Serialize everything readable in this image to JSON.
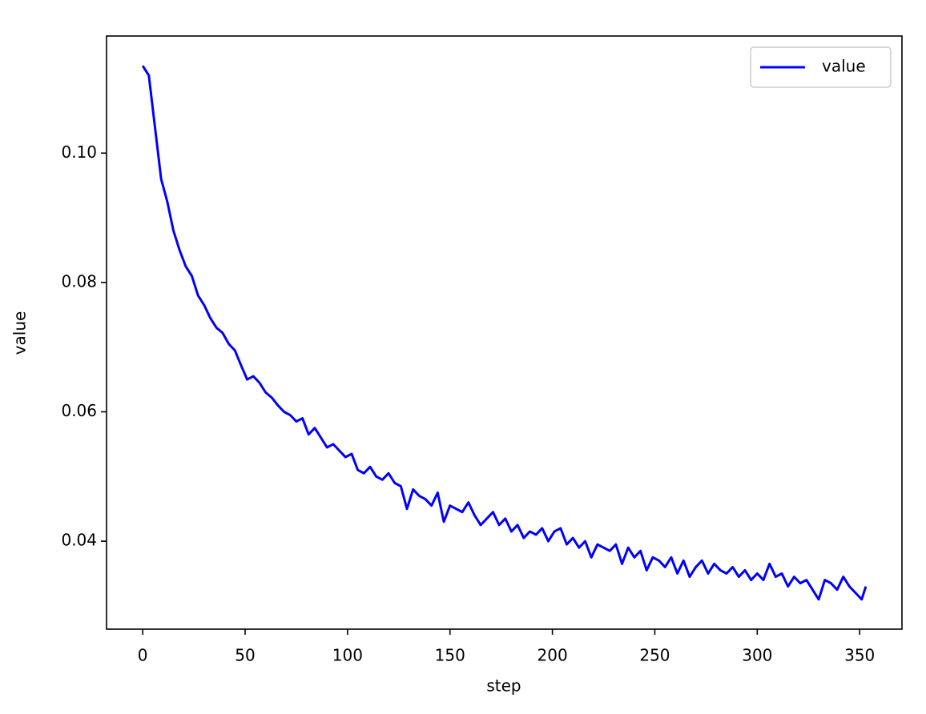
{
  "chart_data": {
    "type": "line",
    "x_label": "step",
    "y_label": "value",
    "x": [
      0,
      3,
      6,
      9,
      12,
      15,
      18,
      21,
      24,
      27,
      30,
      33,
      36,
      39,
      42,
      45,
      48,
      51,
      54,
      57,
      60,
      63,
      66,
      69,
      72,
      75,
      78,
      81,
      84,
      87,
      90,
      93,
      96,
      99,
      102,
      105,
      108,
      111,
      114,
      117,
      120,
      123,
      126,
      129,
      132,
      135,
      138,
      141,
      144,
      147,
      150,
      153,
      156,
      159,
      162,
      165,
      168,
      171,
      174,
      177,
      180,
      183,
      186,
      189,
      192,
      195,
      198,
      201,
      204,
      207,
      210,
      213,
      216,
      219,
      222,
      225,
      228,
      231,
      234,
      237,
      240,
      243,
      246,
      249,
      252,
      255,
      258,
      261,
      264,
      267,
      270,
      273,
      276,
      279,
      282,
      285,
      288,
      291,
      294,
      297,
      300,
      303,
      306,
      309,
      312,
      315,
      318,
      321,
      324,
      327,
      330,
      333,
      336,
      339,
      342,
      345,
      348,
      351,
      353
    ],
    "series": [
      {
        "name": "value",
        "color": "#0000ff",
        "values": [
          0.1135,
          0.112,
          0.104,
          0.096,
          0.0925,
          0.088,
          0.085,
          0.0825,
          0.081,
          0.078,
          0.0765,
          0.0745,
          0.073,
          0.0722,
          0.0705,
          0.0695,
          0.0672,
          0.065,
          0.0655,
          0.0645,
          0.063,
          0.0622,
          0.061,
          0.06,
          0.0595,
          0.0585,
          0.059,
          0.0565,
          0.0575,
          0.056,
          0.0545,
          0.055,
          0.054,
          0.053,
          0.0535,
          0.051,
          0.0505,
          0.0515,
          0.05,
          0.0495,
          0.0505,
          0.049,
          0.0485,
          0.045,
          0.048,
          0.047,
          0.0465,
          0.0455,
          0.0475,
          0.043,
          0.0455,
          0.045,
          0.0445,
          0.046,
          0.044,
          0.0425,
          0.0435,
          0.0445,
          0.0425,
          0.0435,
          0.0415,
          0.0425,
          0.0405,
          0.0415,
          0.041,
          0.042,
          0.04,
          0.0415,
          0.042,
          0.0395,
          0.0405,
          0.039,
          0.04,
          0.0375,
          0.0395,
          0.039,
          0.0385,
          0.0395,
          0.0365,
          0.039,
          0.0375,
          0.0385,
          0.0355,
          0.0375,
          0.037,
          0.036,
          0.0375,
          0.035,
          0.037,
          0.0345,
          0.036,
          0.037,
          0.035,
          0.0365,
          0.0355,
          0.035,
          0.036,
          0.0345,
          0.0355,
          0.034,
          0.035,
          0.034,
          0.0365,
          0.0345,
          0.035,
          0.033,
          0.0345,
          0.0335,
          0.034,
          0.0325,
          0.031,
          0.034,
          0.0335,
          0.0325,
          0.0345,
          0.033,
          0.032,
          0.031,
          0.033
        ]
      }
    ],
    "xlim": [
      -17.65,
      370.65
    ],
    "xticks": [
      0,
      50,
      100,
      150,
      200,
      250,
      300,
      350
    ],
    "ylim": [
      0.0264,
      0.1181
    ],
    "yticks": [
      0.04,
      0.06,
      0.08,
      {
        "value": 0.1,
        "label": "0.10"
      }
    ],
    "legend": "upper right"
  }
}
